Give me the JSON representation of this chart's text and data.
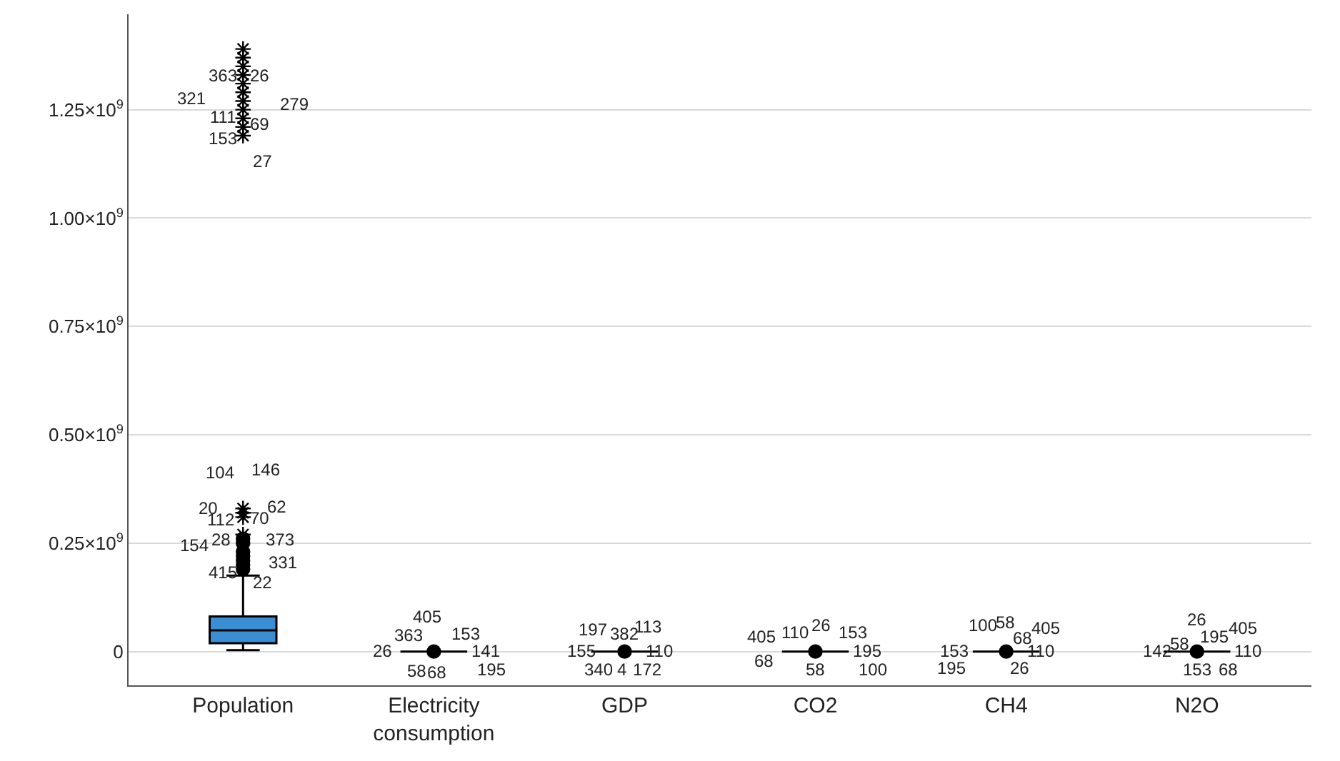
{
  "chart_data": {
    "type": "box",
    "categories": [
      "Population",
      "Electricity consumption",
      "GDP",
      "CO2",
      "CH4",
      "N2O"
    ],
    "colors": [
      "#3a8ed4",
      "#000000",
      "#000000",
      "#000000",
      "#000000",
      "#000000"
    ],
    "boxes": [
      {
        "low": 3000000,
        "q1": 19000000,
        "median": 49000000,
        "q3": 81000000,
        "high": 175000000,
        "outliers": [
          190000000,
          200000000,
          210000000,
          220000000,
          230000000,
          250000000,
          260000000,
          270000000,
          310000000,
          320000000,
          330000000,
          1190000000,
          1210000000,
          1230000000,
          1250000000,
          1270000000,
          1290000000,
          1310000000,
          1330000000,
          1350000000,
          1370000000,
          1390000000
        ]
      },
      {
        "low": 0,
        "q1": 0,
        "median": 0,
        "q3": 0,
        "high": 0,
        "outliers": [
          0
        ]
      },
      {
        "low": 0,
        "q1": 0,
        "median": 0,
        "q3": 0,
        "high": 0,
        "outliers": [
          0
        ]
      },
      {
        "low": 0,
        "q1": 0,
        "median": 0,
        "q3": 0,
        "high": 0,
        "outliers": [
          0
        ]
      },
      {
        "low": 0,
        "q1": 0,
        "median": 0,
        "q3": 0,
        "high": 0,
        "outliers": [
          0
        ]
      },
      {
        "low": 0,
        "q1": 0,
        "median": 0,
        "q3": 0,
        "high": 0,
        "outliers": [
          0
        ]
      }
    ],
    "ylim": [
      -78000000,
      1470000000
    ],
    "yticks": [
      0,
      {
        "value": 250000000,
        "label": "0.25×10$^{9}$"
      },
      {
        "value": 500000000,
        "label": "0.50×10$^{9}$"
      },
      {
        "value": 750000000,
        "label": "0.75×10$^{9}$"
      },
      {
        "value": 1000000000,
        "label": "1.00×10$^{9}$"
      },
      {
        "value": 1250000000,
        "label": "1.25×10$^{9}$"
      }
    ],
    "grid": "y",
    "annotations": [
      "104",
      "146",
      "20",
      "62",
      "112",
      "70",
      "154",
      "28",
      "373",
      "331",
      "415",
      "22",
      "363",
      "26",
      "321",
      "279",
      "111",
      "69",
      "153",
      "27",
      {
        "text": "405",
        "x": "Electricity consumption",
        "y": 0
      },
      {
        "text": "363",
        "x": "Electricity consumption",
        "y": 0
      },
      {
        "text": "26",
        "x": "Electricity consumption",
        "y": 0
      },
      {
        "text": "153",
        "x": "Electricity consumption",
        "y": 0
      },
      {
        "text": "141",
        "x": "Electricity consumption",
        "y": 0
      },
      {
        "text": "195",
        "x": "Electricity consumption",
        "y": 0
      },
      {
        "text": "58",
        "x": "Electricity consumption",
        "y": 0
      },
      {
        "text": "68",
        "x": "Electricity consumption",
        "y": 0
      },
      {
        "text": "197",
        "x": "GDP",
        "y": 0
      },
      {
        "text": "382",
        "x": "GDP",
        "y": 0
      },
      {
        "text": "113",
        "x": "GDP",
        "y": 0
      },
      {
        "text": "155",
        "x": "GDP",
        "y": 0
      },
      {
        "text": "110",
        "x": "GDP",
        "y": 0
      },
      {
        "text": "340",
        "x": "GDP",
        "y": 0
      },
      {
        "text": "4",
        "x": "GDP",
        "y": 0
      },
      {
        "text": "172",
        "x": "GDP",
        "y": 0
      },
      {
        "text": "405",
        "x": "CO2",
        "y": 0
      },
      {
        "text": "68",
        "x": "CO2",
        "y": 0
      },
      {
        "text": "110",
        "x": "CO2",
        "y": 0
      },
      {
        "text": "26",
        "x": "CO2",
        "y": 0
      },
      {
        "text": "153",
        "x": "CO2",
        "y": 0
      },
      {
        "text": "58",
        "x": "CO2",
        "y": 0
      },
      {
        "text": "195",
        "x": "CO2",
        "y": 0
      },
      {
        "text": "100",
        "x": "CO2",
        "y": 0
      },
      {
        "text": "100",
        "x": "CH4",
        "y": 0
      },
      {
        "text": "58",
        "x": "CH4",
        "y": 0
      },
      {
        "text": "405",
        "x": "CH4",
        "y": 0
      },
      {
        "text": "68",
        "x": "CH4",
        "y": 0
      },
      {
        "text": "195",
        "x": "CH4",
        "y": 0
      },
      {
        "text": "153",
        "x": "CH4",
        "y": 0
      },
      {
        "text": "110",
        "x": "CH4",
        "y": 0
      },
      {
        "text": "26",
        "x": "CH4",
        "y": 0
      },
      {
        "text": "26",
        "x": "N2O",
        "y": 0
      },
      {
        "text": "405",
        "x": "N2O",
        "y": 0
      },
      {
        "text": "195",
        "x": "N2O",
        "y": 0
      },
      {
        "text": "142",
        "x": "N2O",
        "y": 0
      },
      {
        "text": "58",
        "x": "N2O",
        "y": 0
      },
      {
        "text": "110",
        "x": "N2O",
        "y": 0
      },
      {
        "text": "153",
        "x": "N2O",
        "y": 0
      },
      {
        "text": "68",
        "x": "N2O",
        "y": 0
      }
    ]
  }
}
